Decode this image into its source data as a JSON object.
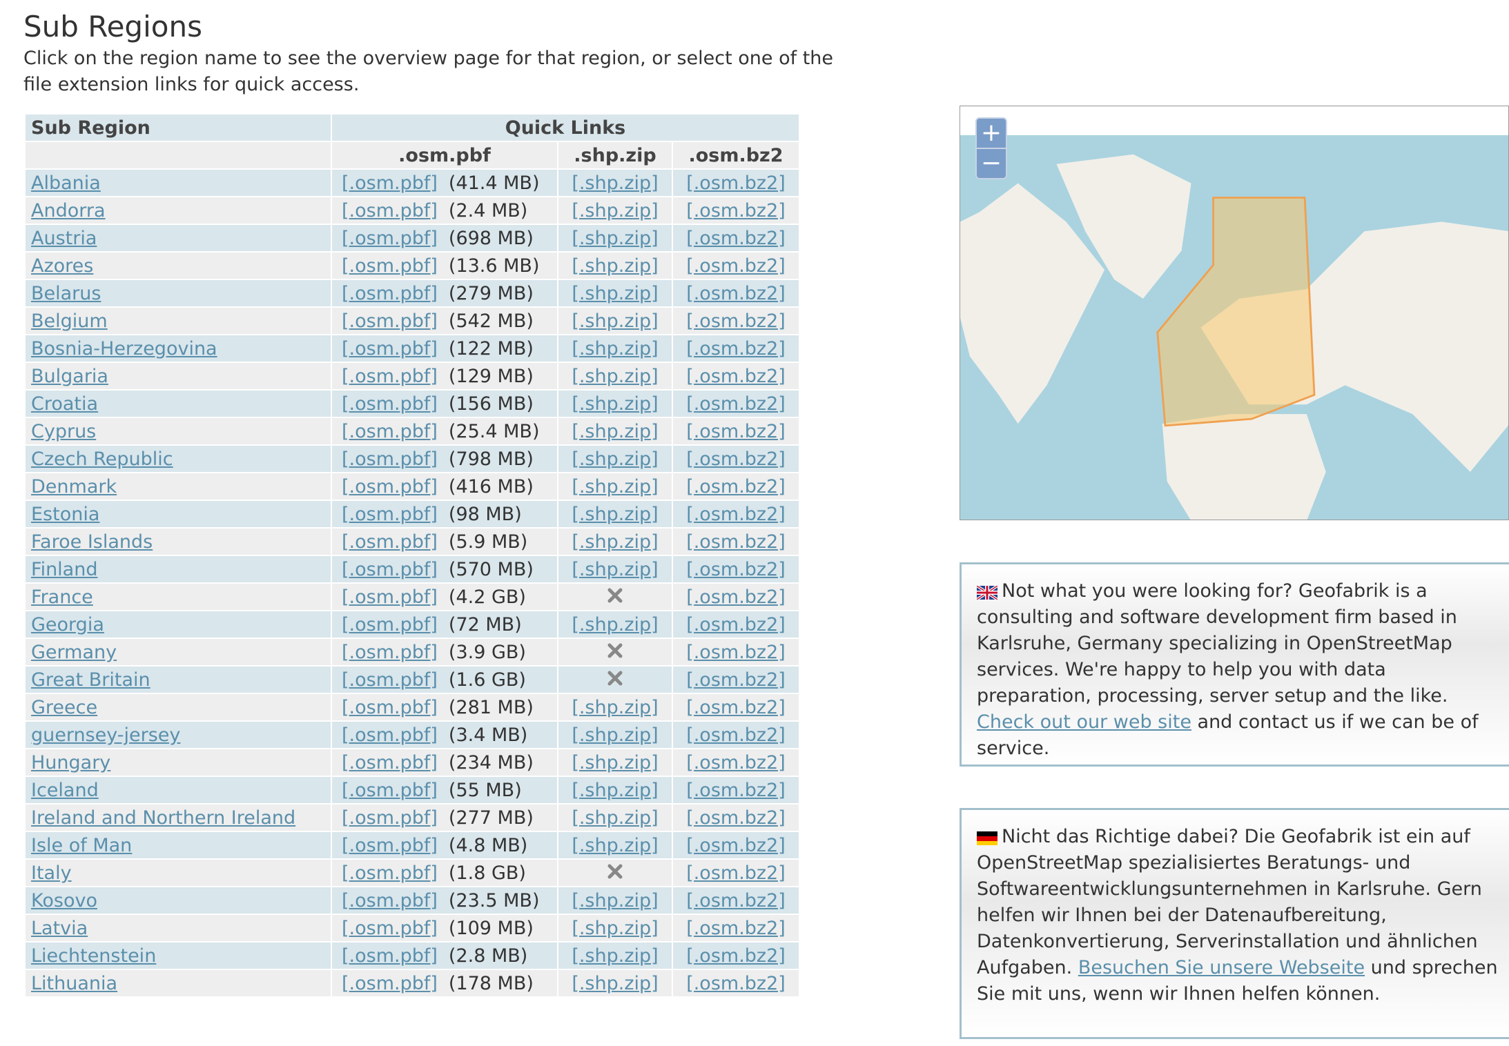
{
  "header": {
    "title": "Sub Regions",
    "description": "Click on the region name to see the overview page for that region, or select one of the file extension links for quick access."
  },
  "table": {
    "headers": {
      "sub_region": "Sub Region",
      "quick_links": "Quick Links",
      "pbf": ".osm.pbf",
      "shp": ".shp.zip",
      "bz2": ".osm.bz2"
    },
    "link_labels": {
      "pbf": "[.osm.pbf]",
      "shp": "[.shp.zip]",
      "bz2": "[.osm.bz2]"
    },
    "rows": [
      {
        "name": "Albania",
        "size": "(41.4 MB)",
        "shp": true
      },
      {
        "name": "Andorra",
        "size": "(2.4 MB)",
        "shp": true
      },
      {
        "name": "Austria",
        "size": "(698 MB)",
        "shp": true
      },
      {
        "name": "Azores",
        "size": "(13.6 MB)",
        "shp": true
      },
      {
        "name": "Belarus",
        "size": "(279 MB)",
        "shp": true
      },
      {
        "name": "Belgium",
        "size": "(542 MB)",
        "shp": true
      },
      {
        "name": "Bosnia-Herzegovina",
        "size": "(122 MB)",
        "shp": true
      },
      {
        "name": "Bulgaria",
        "size": "(129 MB)",
        "shp": true
      },
      {
        "name": "Croatia",
        "size": "(156 MB)",
        "shp": true
      },
      {
        "name": "Cyprus",
        "size": "(25.4 MB)",
        "shp": true
      },
      {
        "name": "Czech Republic",
        "size": "(798 MB)",
        "shp": true
      },
      {
        "name": "Denmark",
        "size": "(416 MB)",
        "shp": true
      },
      {
        "name": "Estonia",
        "size": "(98 MB)",
        "shp": true
      },
      {
        "name": "Faroe Islands",
        "size": "(5.9 MB)",
        "shp": true
      },
      {
        "name": "Finland",
        "size": "(570 MB)",
        "shp": true
      },
      {
        "name": "France",
        "size": "(4.2 GB)",
        "shp": false
      },
      {
        "name": "Georgia",
        "size": "(72 MB)",
        "shp": true
      },
      {
        "name": "Germany",
        "size": "(3.9 GB)",
        "shp": false
      },
      {
        "name": "Great Britain",
        "size": "(1.6 GB)",
        "shp": false
      },
      {
        "name": "Greece",
        "size": "(281 MB)",
        "shp": true
      },
      {
        "name": "guernsey-jersey",
        "size": "(3.4 MB)",
        "shp": true
      },
      {
        "name": "Hungary",
        "size": "(234 MB)",
        "shp": true
      },
      {
        "name": "Iceland",
        "size": "(55 MB)",
        "shp": true
      },
      {
        "name": "Ireland and Northern Ireland",
        "size": "(277 MB)",
        "shp": true
      },
      {
        "name": "Isle of Man",
        "size": "(4.8 MB)",
        "shp": true
      },
      {
        "name": "Italy",
        "size": "(1.8 GB)",
        "shp": false
      },
      {
        "name": "Kosovo",
        "size": "(23.5 MB)",
        "shp": true
      },
      {
        "name": "Latvia",
        "size": "(109 MB)",
        "shp": true
      },
      {
        "name": "Liechtenstein",
        "size": "(2.8 MB)",
        "shp": true
      },
      {
        "name": "Lithuania",
        "size": "(178 MB)",
        "shp": true
      }
    ]
  },
  "map": {
    "zoom_in": "+",
    "zoom_out": "−"
  },
  "boxes": [
    {
      "before": "Not what you were looking for? Geofabrik is a consulting and software development firm based in Karlsruhe, Germany specializing in OpenStreetMap services. We're happy to help you with data preparation, processing, server setup and the like. ",
      "link": "Check out our web site",
      "after": " and contact us if we can be of service."
    },
    {
      "before": "Nicht das Richtige dabei? Die Geofabrik ist ein auf OpenStreetMap spezialisiertes Beratungs- und Softwareentwicklungsunternehmen in Karlsruhe. Gern helfen wir Ihnen bei der Datenaufbereitung, Datenkonvertierung, Serverinstallation und ähnlichen Aufgaben. ",
      "link": "Besuchen Sie unsere Webseite",
      "after": " und sprechen Sie mit uns, wenn wir Ihnen helfen können."
    }
  ]
}
